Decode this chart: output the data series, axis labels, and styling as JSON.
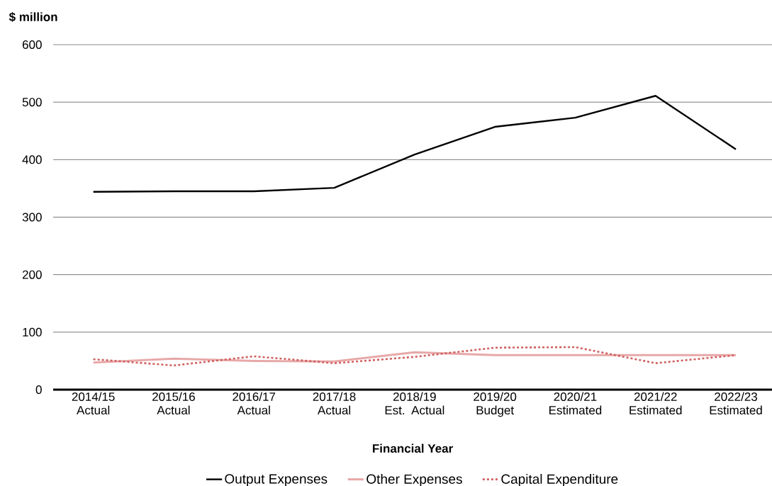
{
  "chart_data": {
    "type": "line",
    "ylabel": "$ million",
    "xlabel": "Financial Year",
    "categories": [
      "2014/15 Actual",
      "2015/16 Actual",
      "2016/17 Actual",
      "2017/18 Actual",
      "2018/19 Est. Actual",
      "2019/20 Budget",
      "2020/21 Estimated",
      "2021/22 Estimated",
      "2022/23 Estimated"
    ],
    "series": [
      {
        "name": "Output Expenses",
        "color": "#000000",
        "line_style": "solid",
        "values": [
          344,
          345,
          345,
          351,
          409,
          457,
          473,
          511,
          418
        ]
      },
      {
        "name": "Other Expenses",
        "color": "#e8a8a8",
        "line_style": "solid",
        "values": [
          47,
          54,
          50,
          49,
          65,
          60,
          60,
          60,
          60
        ]
      },
      {
        "name": "Capital Expenditure",
        "color": "#d06060",
        "line_style": "dotted",
        "values": [
          53,
          42,
          58,
          46,
          57,
          73,
          74,
          46,
          60
        ]
      }
    ],
    "ylim": [
      0,
      600
    ],
    "yticks": [
      0,
      100,
      200,
      300,
      400,
      500,
      600
    ],
    "grid": "y",
    "legend": "bottom"
  }
}
